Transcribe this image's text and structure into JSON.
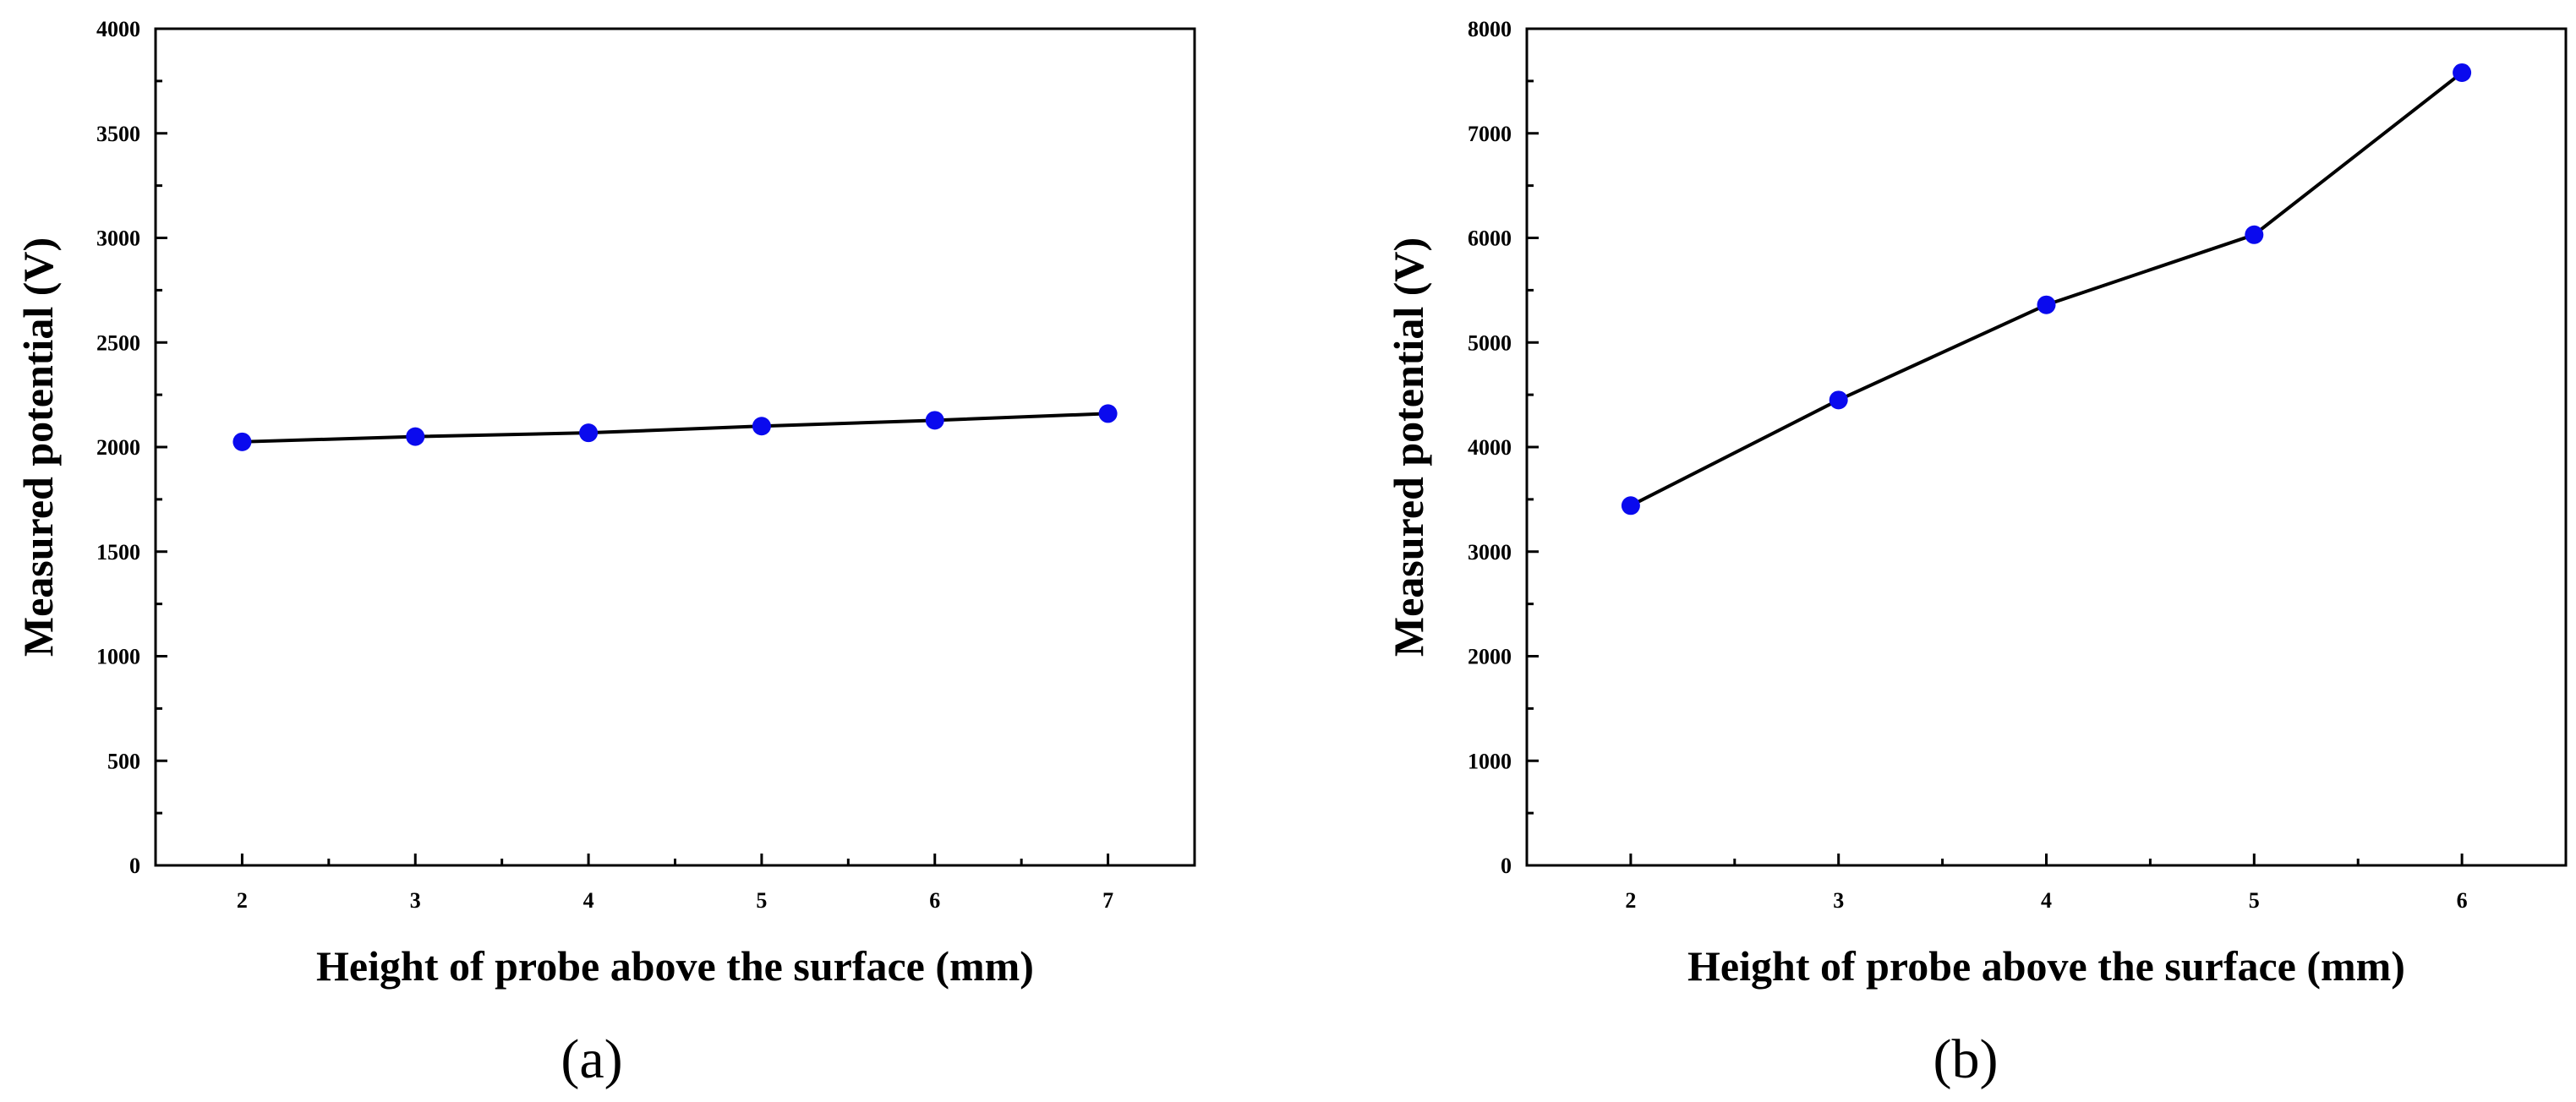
{
  "chart_data": [
    {
      "type": "line",
      "panel_label": "(a)",
      "xlabel": "Height of probe above the surface (mm)",
      "ylabel": "Measured potential (V)",
      "xlim": [
        1.5,
        7.5
      ],
      "ylim": [
        0,
        4000
      ],
      "xticks": [
        2,
        3,
        4,
        5,
        6,
        7
      ],
      "yticks": [
        0,
        500,
        1000,
        1500,
        2000,
        2500,
        3000,
        3500,
        4000
      ],
      "x": [
        2,
        3,
        4,
        5,
        6,
        7
      ],
      "y": [
        2025,
        2050,
        2068,
        2100,
        2128,
        2160
      ],
      "marker_color": "#0a0aee",
      "line_color": "#000000"
    },
    {
      "type": "line",
      "panel_label": "(b)",
      "xlabel": "Height of probe above the surface (mm)",
      "ylabel": "Measured potential (V)",
      "xlim": [
        1.5,
        6.5
      ],
      "ylim": [
        0,
        8000
      ],
      "xticks": [
        2,
        3,
        4,
        5,
        6
      ],
      "yticks": [
        0,
        1000,
        2000,
        3000,
        4000,
        5000,
        6000,
        7000,
        8000
      ],
      "x": [
        2,
        3,
        4,
        5,
        6
      ],
      "y": [
        3440,
        4450,
        5360,
        6030,
        7580
      ],
      "marker_color": "#0a0aee",
      "line_color": "#000000"
    }
  ]
}
